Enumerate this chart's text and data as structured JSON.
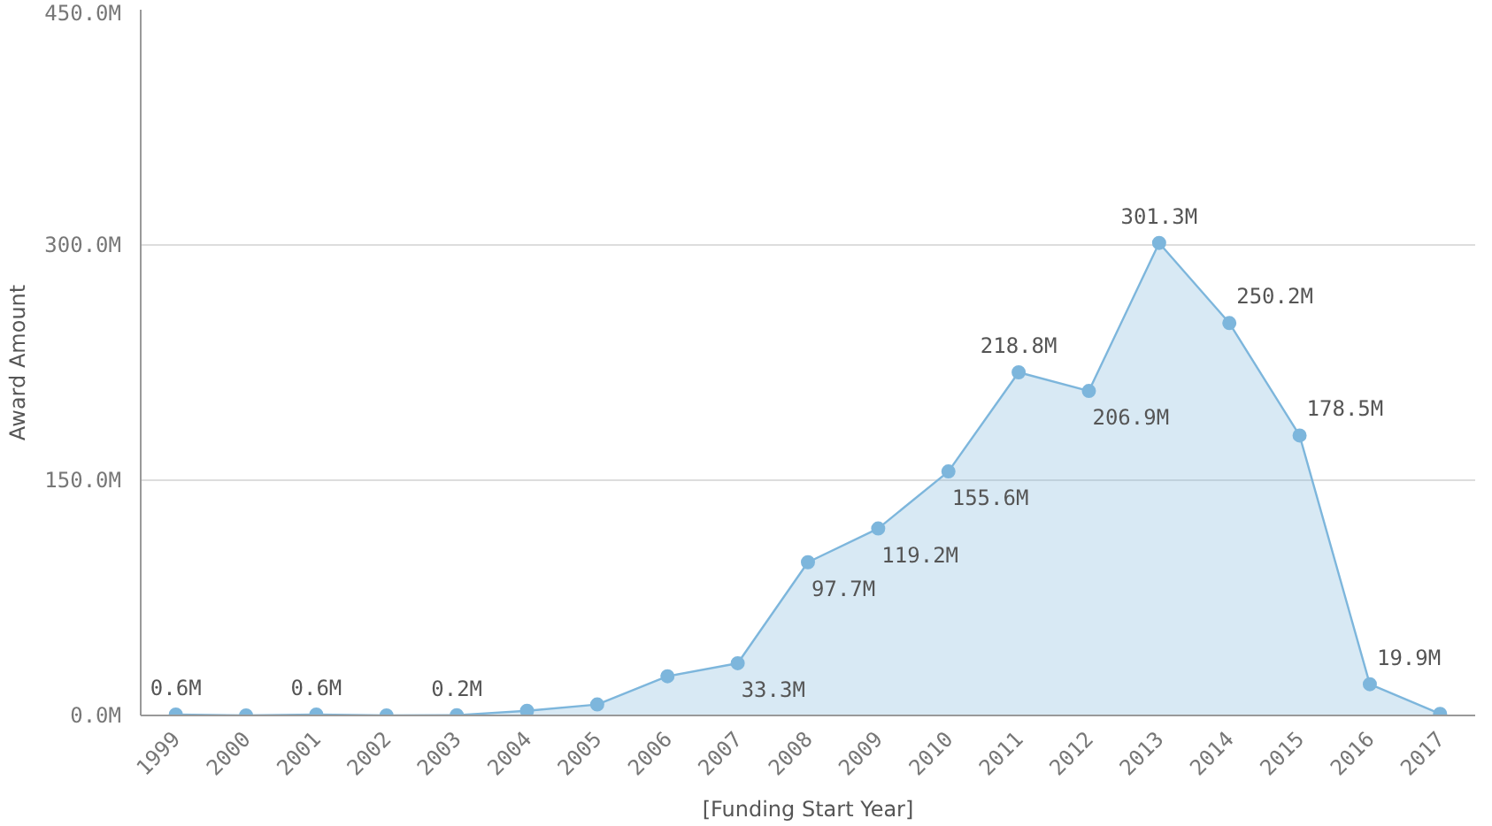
{
  "chart_data": {
    "type": "area",
    "xlabel": "[Funding Start Year]",
    "ylabel": "Award Amount",
    "categories": [
      "1999",
      "2000",
      "2001",
      "2002",
      "2003",
      "2004",
      "2005",
      "2006",
      "2007",
      "2008",
      "2009",
      "2010",
      "2011",
      "2012",
      "2013",
      "2014",
      "2015",
      "2016",
      "2017"
    ],
    "series": [
      {
        "color": "#7db6dc",
        "values": [
          0.6,
          0,
          0.6,
          0,
          0.2,
          3,
          7,
          25,
          33.3,
          97.7,
          119.2,
          155.6,
          218.8,
          206.9,
          301.3,
          250.2,
          178.5,
          19.9,
          1
        ],
        "value_labels": [
          "0.6M",
          null,
          "0.6M",
          null,
          "0.2M",
          null,
          null,
          null,
          "33.3M",
          "97.7M",
          "119.2M",
          "155.6M",
          "218.8M",
          "206.9M",
          "301.3M",
          "250.2M",
          "178.5M",
          "19.9M",
          null
        ]
      }
    ],
    "ylim": [
      0,
      450
    ],
    "yticks": [
      {
        "value": 0,
        "label": "0.0M"
      },
      {
        "value": 150,
        "label": "150.0M"
      },
      {
        "value": 300,
        "label": "300.0M"
      },
      {
        "value": 450,
        "label": "450.0M"
      }
    ],
    "grid": "y",
    "marker": "circle",
    "line_style": "solid"
  }
}
